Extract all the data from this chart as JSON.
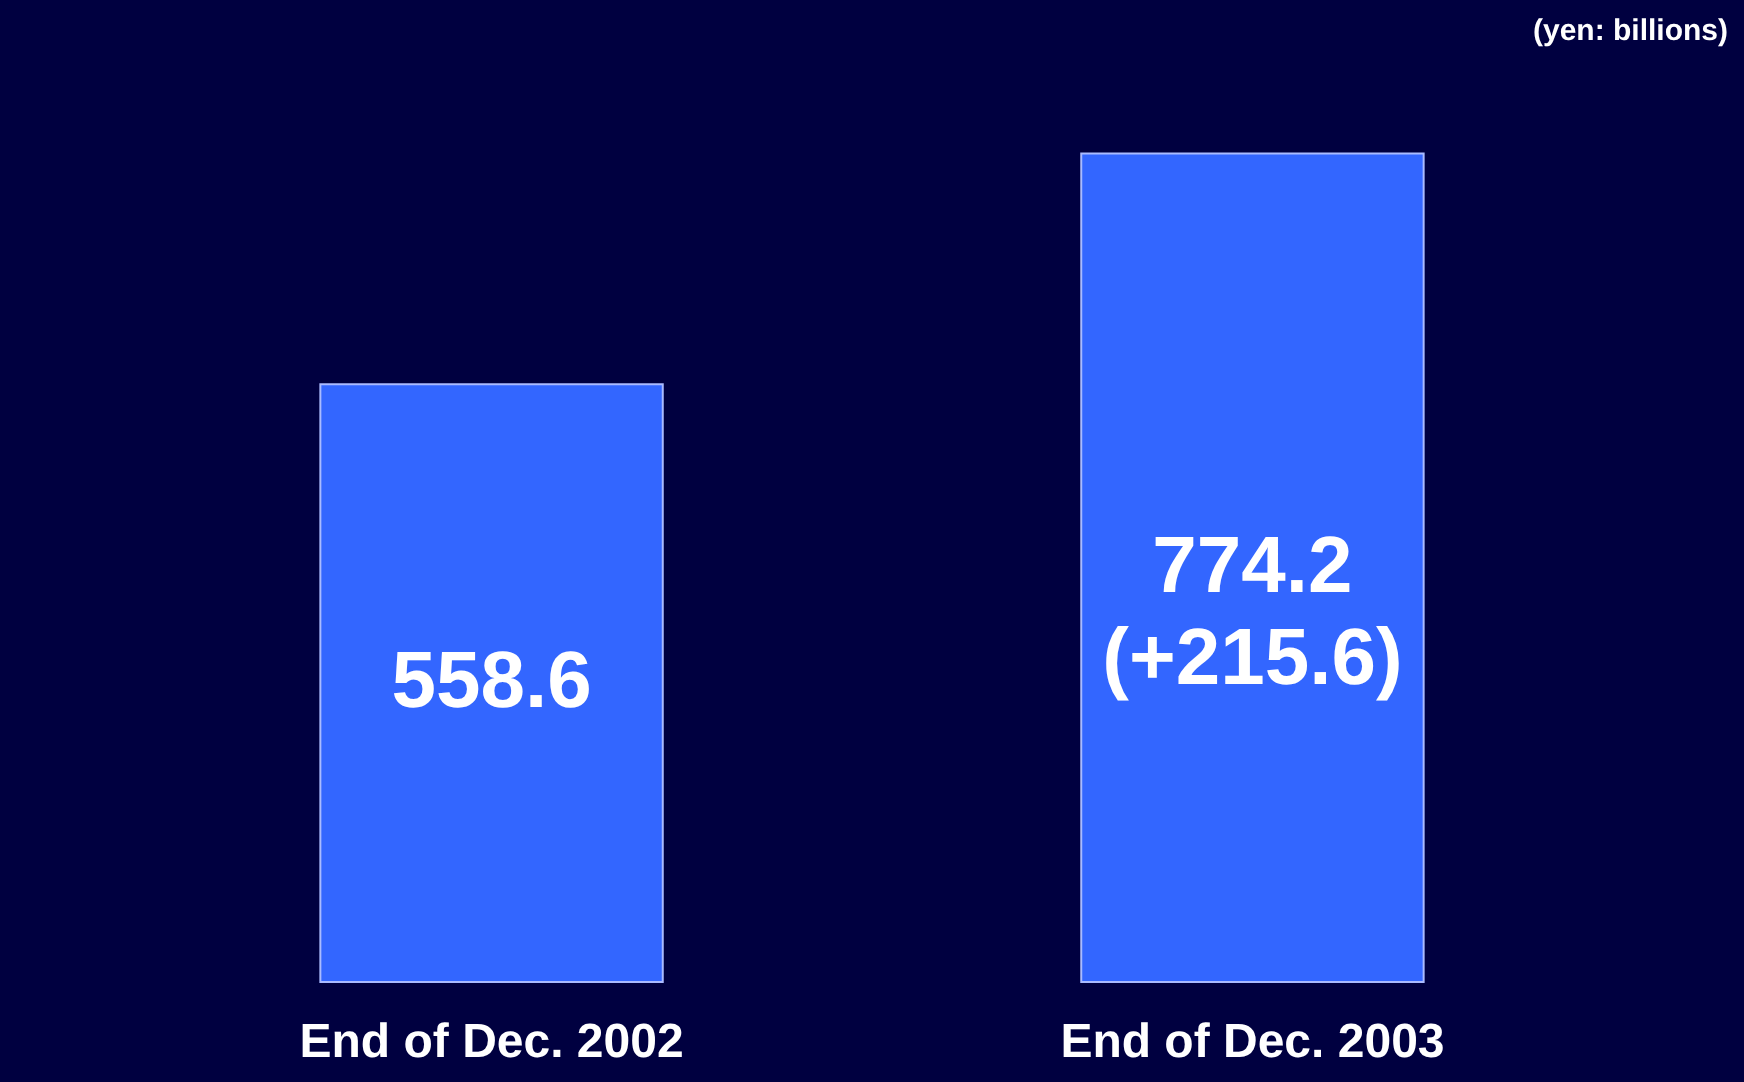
{
  "chart_data": {
    "type": "bar",
    "categories": [
      "End of Dec. 2002",
      "End of Dec. 2003"
    ],
    "values": [
      558.6,
      774.2
    ],
    "color": "#3366ff",
    "value_labels": [
      "558.6",
      "774.2\n(+215.6)"
    ],
    "annotations": [
      "(yen: billions)"
    ]
  }
}
